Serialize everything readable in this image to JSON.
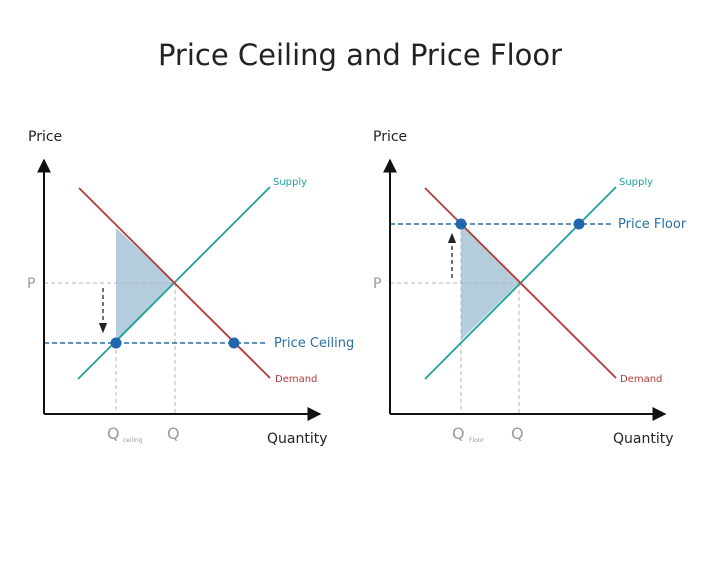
{
  "title": "Price Ceiling and Price Floor",
  "colors": {
    "supply": "#1fa19a",
    "demand": "#b23a3a",
    "control_line": "#2a6fa5",
    "dot": "#1f66ad",
    "shade": "#b3cddd",
    "guide": "#b5b5b5",
    "axis": "#111111"
  },
  "left": {
    "price_label": "Price",
    "quantity_label": "Quantity",
    "supply_label": "Supply",
    "demand_label": "Demand",
    "p_label": "P",
    "q_label": "Q",
    "q_ceiling_label": "Q",
    "q_ceiling_sub": "ceiling",
    "control_label": "Price Ceiling"
  },
  "right": {
    "price_label": "Price",
    "quantity_label": "Quantity",
    "supply_label": "Supply",
    "demand_label": "Demand",
    "p_label": "P",
    "q_label": "Q",
    "q_floor_label": "Q",
    "q_floor_sub": "Floor",
    "control_label": "Price Floor"
  }
}
